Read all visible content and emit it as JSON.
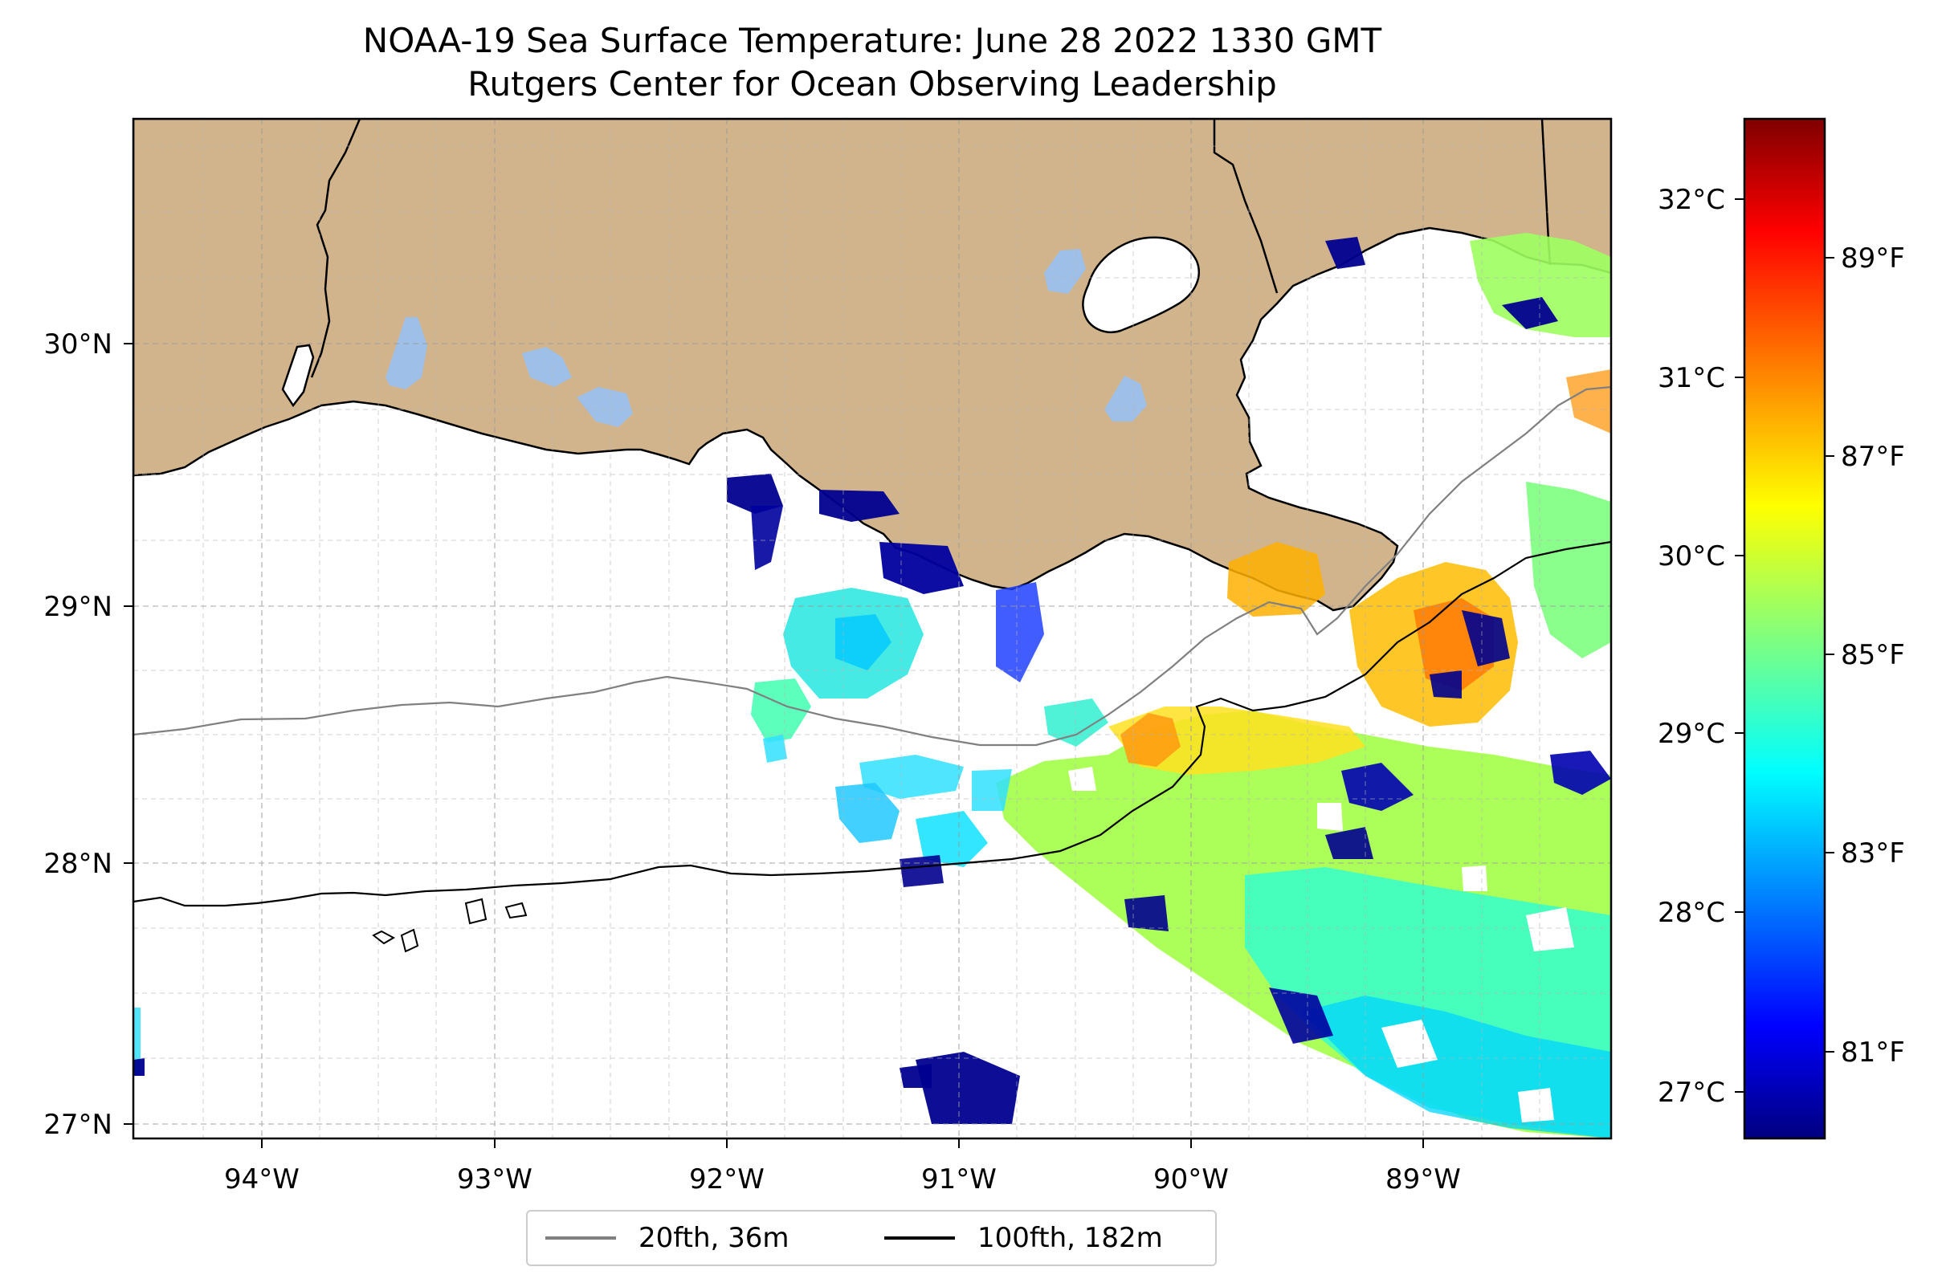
{
  "title": {
    "line1": "NOAA-19 Sea Surface Temperature: June 28 2022 1330 GMT",
    "line2": "Rutgers Center for Ocean Observing Leadership"
  },
  "map": {
    "longitude_range": [
      -94.55,
      -88.2
    ],
    "latitude_range": [
      26.95,
      30.85
    ],
    "grid": true,
    "x_tick_labels": [
      "94°W",
      "93°W",
      "92°W",
      "91°W",
      "90°W",
      "89°W"
    ],
    "y_tick_labels": [
      "27°N",
      "28°N",
      "29°N",
      "30°N"
    ],
    "colors": {
      "land": "#d2b48c",
      "lakes": "#9ebfe8",
      "coastline": "#000000",
      "isobath_20fth": "#808080",
      "isobath_100fth": "#000000"
    }
  },
  "colorbar": {
    "colormap": "jet",
    "celsius_labels": [
      "32°C",
      "31°C",
      "30°C",
      "29°C",
      "28°C",
      "27°C"
    ],
    "fahrenheit_labels": [
      "89°F",
      "87°F",
      "85°F",
      "83°F",
      "81°F"
    ],
    "celsius_range": [
      26.75,
      32.5
    ]
  },
  "legend": {
    "items": [
      {
        "label": "20fth, 36m",
        "color": "#808080"
      },
      {
        "label": "100fth, 182m",
        "color": "#000000"
      }
    ]
  }
}
